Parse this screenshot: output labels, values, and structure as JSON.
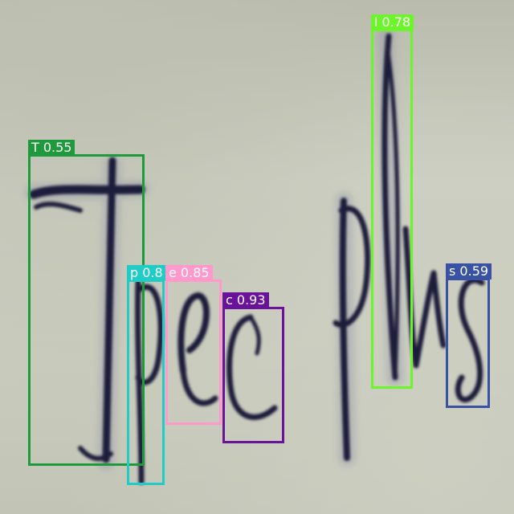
{
  "detections": [
    {
      "label": "T 0.55",
      "color": "#1e9a3c"
    },
    {
      "label": "p 0.8",
      "color": "#22ccc6"
    },
    {
      "label": "e 0.85",
      "color": "#ff99cc"
    },
    {
      "label": "c 0.93",
      "color": "#6a129a"
    },
    {
      "label": "l 0.78",
      "color": "#6cf52a"
    },
    {
      "label": "s 0.59",
      "color": "#3a52a4"
    }
  ]
}
